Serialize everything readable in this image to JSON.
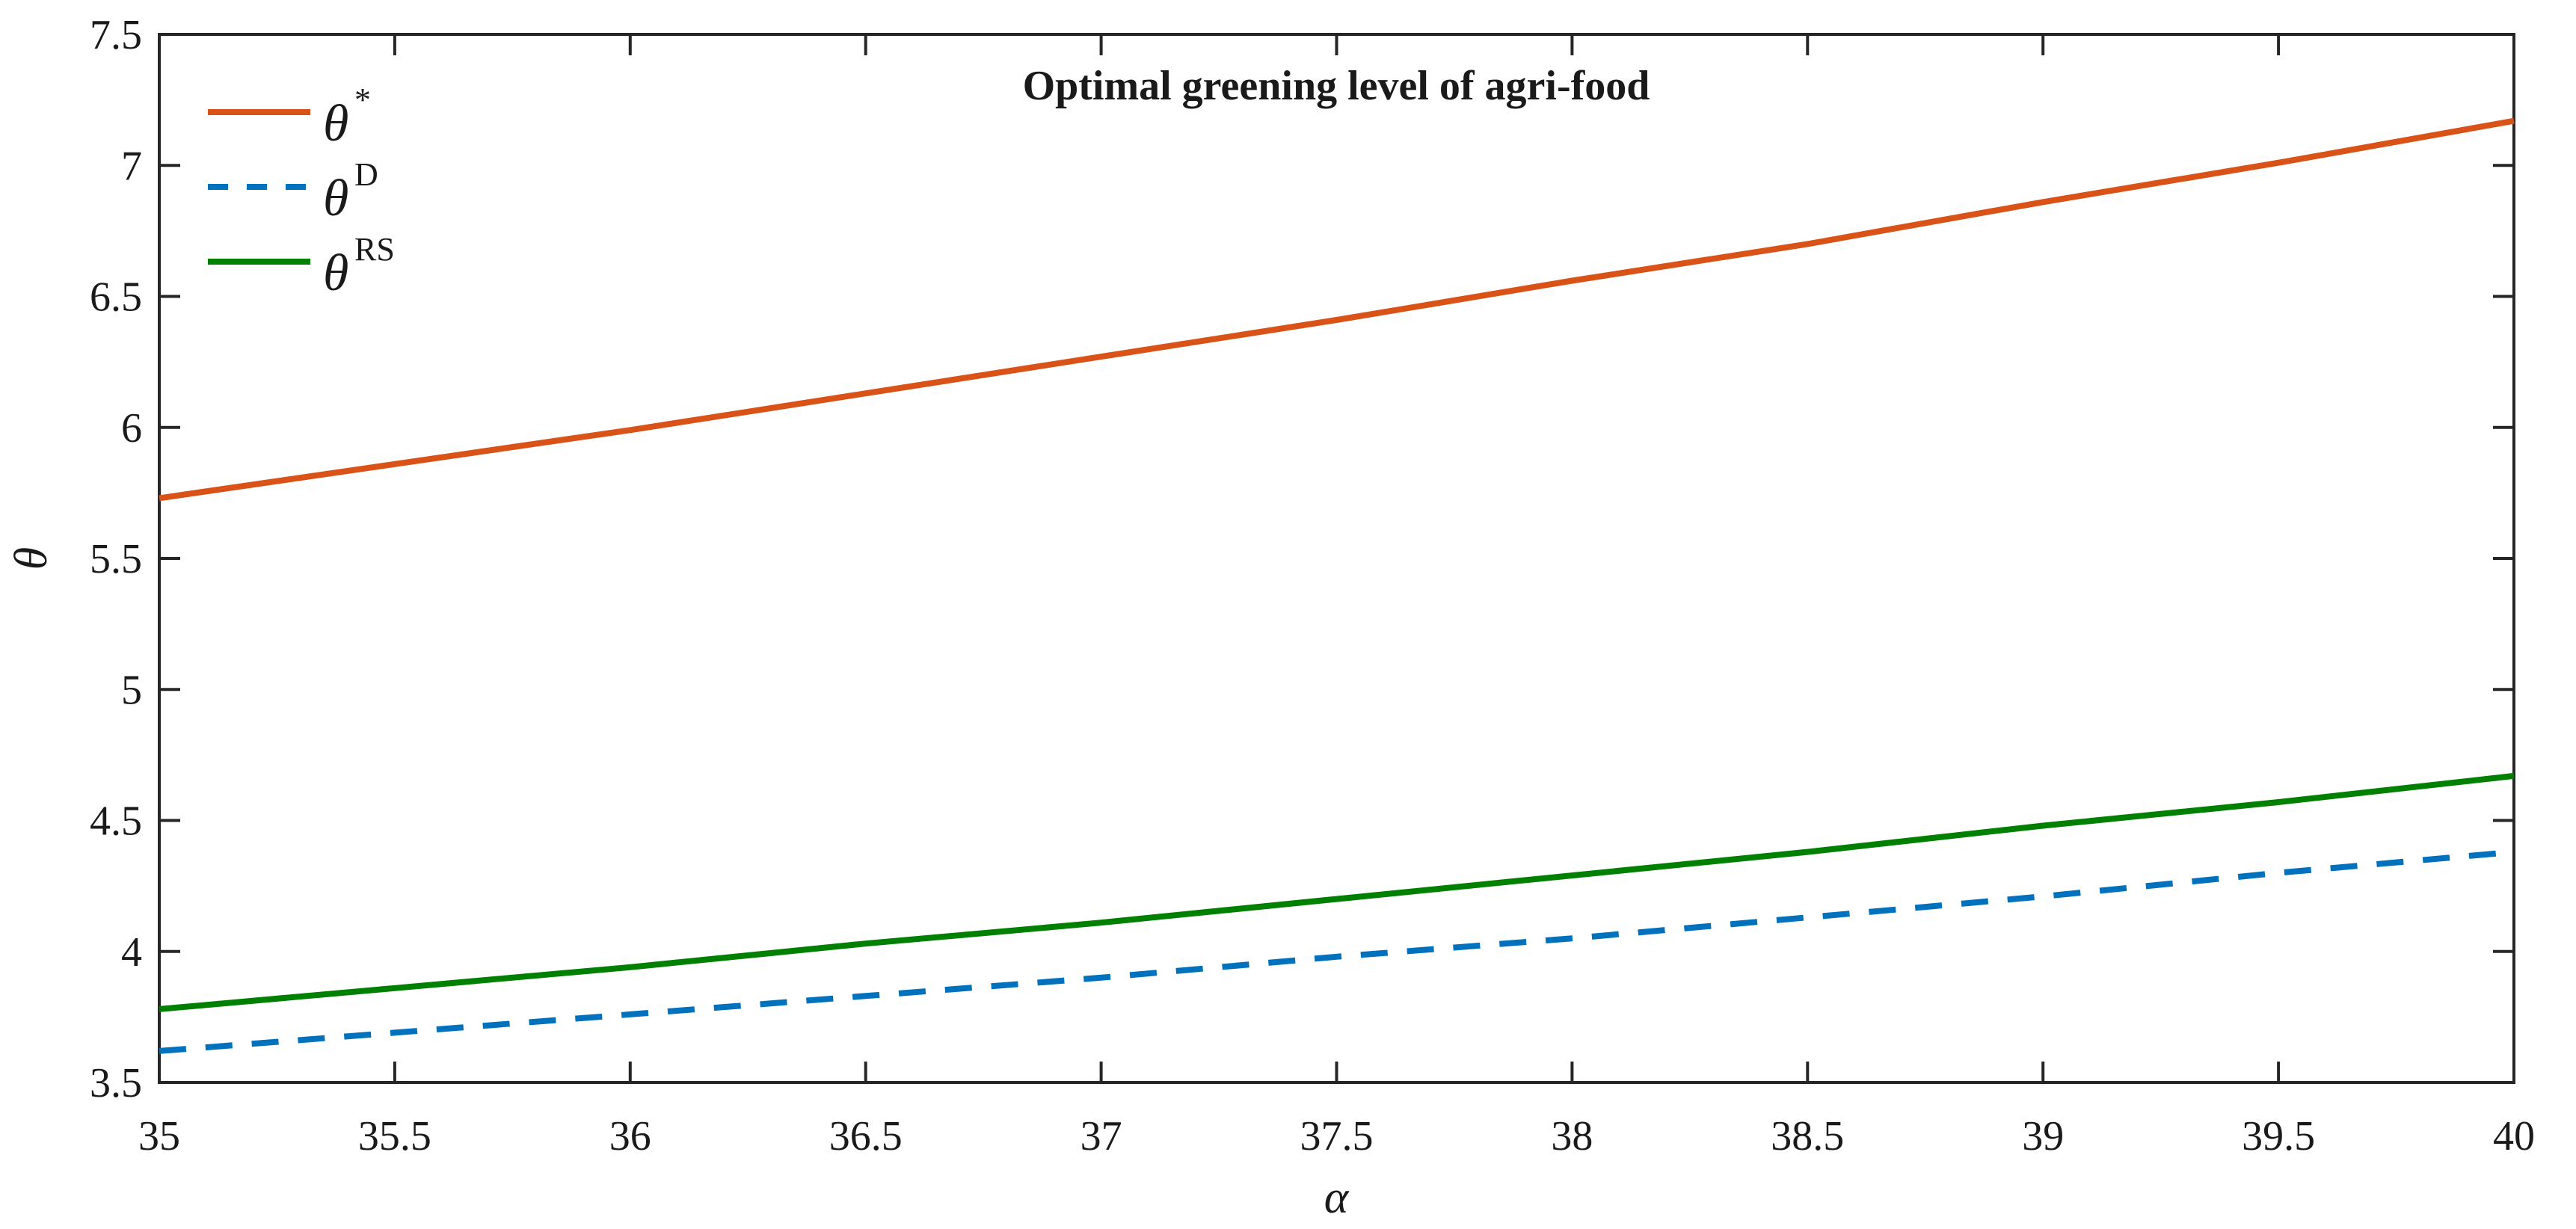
{
  "figure": {
    "background": "#ffffff"
  },
  "chart_data": {
    "type": "line",
    "title": "Optimal greening level of agri-food",
    "xlabel": "α",
    "ylabel": "θ",
    "xlim": [
      35,
      40
    ],
    "ylim": [
      3.5,
      7.5
    ],
    "x_ticks": [
      35,
      35.5,
      36,
      36.5,
      37,
      37.5,
      38,
      38.5,
      39,
      39.5,
      40
    ],
    "y_ticks": [
      3.5,
      4,
      4.5,
      5,
      5.5,
      6,
      6.5,
      7,
      7.5
    ],
    "grid": false,
    "box": true,
    "tick_direction": "in",
    "axis_color": "#262626",
    "legend_position": "top-left-inside",
    "x": [
      35,
      35.5,
      36,
      36.5,
      37,
      37.5,
      38,
      38.5,
      39,
      39.5,
      40
    ],
    "series": [
      {
        "name": "θ*",
        "base": "θ",
        "sup": "*",
        "color": "#D95319",
        "style": "solid",
        "values": [
          5.73,
          5.86,
          5.99,
          6.13,
          6.27,
          6.41,
          6.56,
          6.7,
          6.86,
          7.01,
          7.17
        ]
      },
      {
        "name": "θD",
        "base": "θ",
        "sup": "D",
        "color": "#0072BD",
        "style": "dashed",
        "values": [
          3.62,
          3.69,
          3.76,
          3.83,
          3.9,
          3.98,
          4.05,
          4.13,
          4.21,
          4.3,
          4.38
        ]
      },
      {
        "name": "θRS",
        "base": "θ",
        "sup": "RS",
        "color": "#008000",
        "style": "solid",
        "values": [
          3.78,
          3.86,
          3.94,
          4.03,
          4.11,
          4.2,
          4.29,
          4.38,
          4.48,
          4.57,
          4.67
        ]
      }
    ]
  }
}
